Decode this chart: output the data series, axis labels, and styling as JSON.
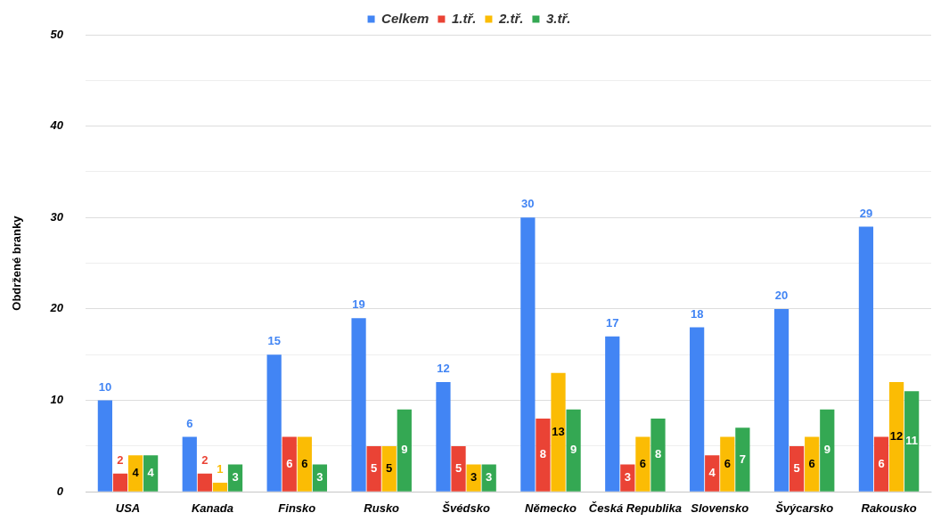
{
  "chart_data": {
    "type": "bar",
    "ylabel": "Obdržené branky",
    "categories": [
      "USA",
      "Kanada",
      "Finsko",
      "Rusko",
      "Švédsko",
      "Německo",
      "Česká Republika",
      "Slovensko",
      "Švýcarsko",
      "Rakousko"
    ],
    "series": [
      {
        "name": "Celkem",
        "color": "#4285f4",
        "values": [
          10,
          6,
          15,
          19,
          12,
          30,
          17,
          18,
          20,
          29
        ]
      },
      {
        "name": "1.tř.",
        "color": "#ea4335",
        "values": [
          2,
          2,
          6,
          5,
          5,
          8,
          3,
          4,
          5,
          6
        ]
      },
      {
        "name": "2.tř.",
        "color": "#fbbc04",
        "values": [
          4,
          1,
          6,
          5,
          3,
          13,
          6,
          6,
          6,
          12
        ]
      },
      {
        "name": "3.tř.",
        "color": "#34a853",
        "values": [
          4,
          3,
          3,
          9,
          3,
          9,
          8,
          7,
          9,
          11
        ]
      }
    ],
    "ylim": [
      0,
      50
    ],
    "yticks": [
      0,
      {
        "value": 5,
        "label": null
      },
      10,
      {
        "value": 15,
        "label": null
      },
      20,
      {
        "value": 25,
        "label": null
      },
      30,
      {
        "value": 35,
        "label": null
      },
      40,
      {
        "value": 45,
        "label": null
      },
      50
    ],
    "grid": "y",
    "legend": "top",
    "data_labels": true
  }
}
